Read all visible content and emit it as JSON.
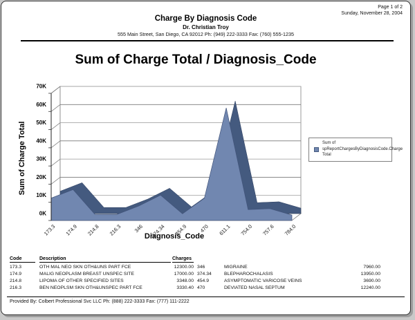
{
  "page": {
    "page_number": "Page 1 of 2",
    "date": "Sunday, November 28, 2004",
    "report_title": "Charge By Diagnosis Code",
    "doctor_name": "Dr. Christian Troy",
    "address_line": "555 Main Street, San Diego, CA 92012 Ph: (949) 222-3333 Fax: (760) 555-1235",
    "footer": "Provided By: Colbert Professional Svc LLC Ph: (888) 222-3333 Fax: (777) 111-2222"
  },
  "chart_data": {
    "type": "area",
    "style": "3d",
    "title": "Sum of Charge Total / Diagnosis_Code",
    "xlabel": "Diagnosis_Code",
    "ylabel": "Sum of Charge Total",
    "categories": [
      "173.3",
      "174.9",
      "214.8",
      "216.3",
      "346",
      "374.34",
      "454.9",
      "470",
      "611.1",
      "754.0",
      "757.6",
      "784.0"
    ],
    "values": [
      12300,
      17000,
      3348,
      3330.4,
      7960,
      13950,
      3690,
      12240,
      62000,
      6000,
      6500,
      3000
    ],
    "ylim": [
      0,
      70000
    ],
    "y_tick_labels": [
      "0K",
      "10K",
      "20K",
      "30K",
      "40K",
      "50K",
      "60K",
      "70K"
    ],
    "grid": true,
    "legend_position": "right",
    "legend_lines": [
      "Sum of",
      "spReportChargesByDiagnosisCode.Charge",
      "Total"
    ],
    "series_color": "#7187b0",
    "series_side_color": "#445a7f"
  },
  "table": {
    "headers": [
      "Code",
      "Description",
      "Charges"
    ],
    "rows_left": [
      {
        "code": "173.3",
        "description": "OTH MAL NEO SKN OTH&UNS PART FCE",
        "charges": "12300.00"
      },
      {
        "code": "174.9",
        "description": "MALIG NEOPLASM BREAST UNSPEC SITE",
        "charges": "17000.00"
      },
      {
        "code": "214.8",
        "description": "LIPOMA OF OTHER SPECIFIED SITES",
        "charges": "3348.00"
      },
      {
        "code": "216.3",
        "description": "BEN NEOPLSM SKN OTH&UNSPEC PART FCE",
        "charges": "3330.40"
      }
    ],
    "rows_right": [
      {
        "code": "346",
        "description": "MIGRAINE",
        "charges": "7960.00"
      },
      {
        "code": "374.34",
        "description": "BLEPHAROCHALASIS",
        "charges": "13950.00"
      },
      {
        "code": "454.9",
        "description": "ASYMPTOMATIC VARICOSE VEINS",
        "charges": "3690.00"
      },
      {
        "code": "470",
        "description": "DEVIATED NASAL SEPTUM",
        "charges": "12240.00"
      }
    ]
  }
}
